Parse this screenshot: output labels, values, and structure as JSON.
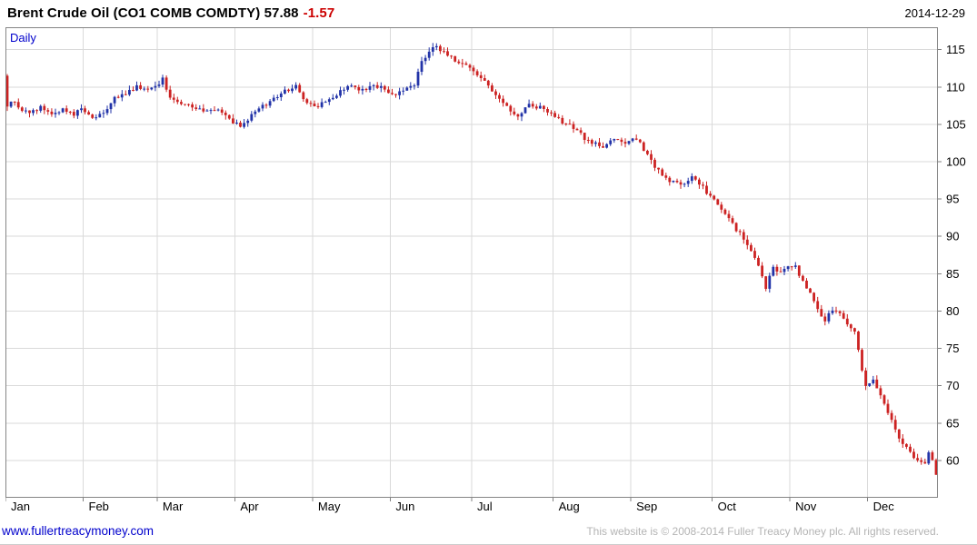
{
  "header": {
    "title": "Brent Crude Oil  (CO1 COMB COMDTY) 57.88",
    "change": "-1.57",
    "date": "2014-12-29"
  },
  "chart": {
    "mode_label": "Daily"
  },
  "footer": {
    "link": "www.fullertreacymoney.com",
    "copyright": "This website is © 2008-2014 Fuller Treacy Money plc. All rights reserved."
  },
  "chart_data": {
    "type": "candlestick",
    "title": "Brent Crude Oil (CO1 COMB COMDTY)",
    "frequency": "Daily",
    "last_price": 57.88,
    "change": -1.57,
    "date": "2014-12-29",
    "xlabel": "",
    "ylabel": "",
    "grid": true,
    "legend": false,
    "ylim": [
      55,
      118
    ],
    "yticks": [
      60,
      65,
      70,
      75,
      80,
      85,
      90,
      95,
      100,
      105,
      110,
      115
    ],
    "months": [
      "Jan",
      "Feb",
      "Mar",
      "Apr",
      "May",
      "Jun",
      "Jul",
      "Aug",
      "Sep",
      "Oct",
      "Nov",
      "Dec"
    ],
    "month_start_day": [
      0,
      21,
      41,
      62,
      83,
      104,
      126,
      148,
      169,
      191,
      212,
      233
    ],
    "total_days": 252,
    "first_open": 111.5,
    "noise": 0.3,
    "wick": 0.6,
    "up_color": "#2233a8",
    "down_color": "#cc2222",
    "anchors": [
      [
        0,
        107.6
      ],
      [
        2,
        107.9
      ],
      [
        4,
        107.0
      ],
      [
        6,
        106.6
      ],
      [
        9,
        107.3
      ],
      [
        12,
        106.4
      ],
      [
        15,
        107.0
      ],
      [
        18,
        106.2
      ],
      [
        20,
        107.4
      ],
      [
        23,
        105.9
      ],
      [
        26,
        106.6
      ],
      [
        29,
        108.4
      ],
      [
        32,
        109.2
      ],
      [
        35,
        110.1
      ],
      [
        38,
        109.6
      ],
      [
        40,
        110.0
      ],
      [
        42,
        111.2
      ],
      [
        44,
        108.6
      ],
      [
        47,
        108.0
      ],
      [
        50,
        107.4
      ],
      [
        53,
        106.6
      ],
      [
        56,
        107.0
      ],
      [
        59,
        106.4
      ],
      [
        61,
        105.4
      ],
      [
        63,
        104.8
      ],
      [
        66,
        106.3
      ],
      [
        69,
        107.4
      ],
      [
        72,
        108.6
      ],
      [
        75,
        109.4
      ],
      [
        78,
        110.1
      ],
      [
        80,
        108.4
      ],
      [
        82,
        107.7
      ],
      [
        84,
        107.6
      ],
      [
        87,
        108.4
      ],
      [
        90,
        109.4
      ],
      [
        93,
        110.2
      ],
      [
        96,
        109.6
      ],
      [
        99,
        110.2
      ],
      [
        102,
        109.8
      ],
      [
        104,
        109.0
      ],
      [
        107,
        109.6
      ],
      [
        110,
        110.4
      ],
      [
        112,
        113.2
      ],
      [
        114,
        115.0
      ],
      [
        116,
        115.4
      ],
      [
        118,
        114.6
      ],
      [
        120,
        113.9
      ],
      [
        123,
        113.0
      ],
      [
        126,
        112.2
      ],
      [
        129,
        110.6
      ],
      [
        132,
        108.8
      ],
      [
        135,
        107.2
      ],
      [
        138,
        106.2
      ],
      [
        141,
        107.6
      ],
      [
        144,
        107.3
      ],
      [
        147,
        106.6
      ],
      [
        149,
        105.6
      ],
      [
        152,
        104.9
      ],
      [
        155,
        103.6
      ],
      [
        158,
        102.4
      ],
      [
        161,
        102.1
      ],
      [
        164,
        103.0
      ],
      [
        167,
        102.6
      ],
      [
        170,
        103.1
      ],
      [
        173,
        100.8
      ],
      [
        176,
        98.7
      ],
      [
        179,
        97.4
      ],
      [
        182,
        96.9
      ],
      [
        185,
        98.0
      ],
      [
        188,
        96.6
      ],
      [
        190,
        95.2
      ],
      [
        192,
        94.3
      ],
      [
        195,
        92.4
      ],
      [
        198,
        90.3
      ],
      [
        201,
        88.2
      ],
      [
        203,
        85.8
      ],
      [
        205,
        83.2
      ],
      [
        207,
        85.8
      ],
      [
        209,
        85.4
      ],
      [
        211,
        86.2
      ],
      [
        213,
        85.8
      ],
      [
        215,
        84.2
      ],
      [
        217,
        82.4
      ],
      [
        219,
        80.1
      ],
      [
        221,
        78.8
      ],
      [
        223,
        80.3
      ],
      [
        225,
        79.6
      ],
      [
        227,
        78.2
      ],
      [
        229,
        77.4
      ],
      [
        230,
        74.8
      ],
      [
        231,
        72.3
      ],
      [
        232,
        70.2
      ],
      [
        234,
        70.8
      ],
      [
        236,
        68.9
      ],
      [
        238,
        66.6
      ],
      [
        240,
        64.1
      ],
      [
        242,
        62.3
      ],
      [
        244,
        61.1
      ],
      [
        246,
        60.1
      ],
      [
        248,
        59.6
      ],
      [
        249,
        60.8
      ],
      [
        250,
        59.9
      ],
      [
        251,
        57.9
      ]
    ]
  }
}
